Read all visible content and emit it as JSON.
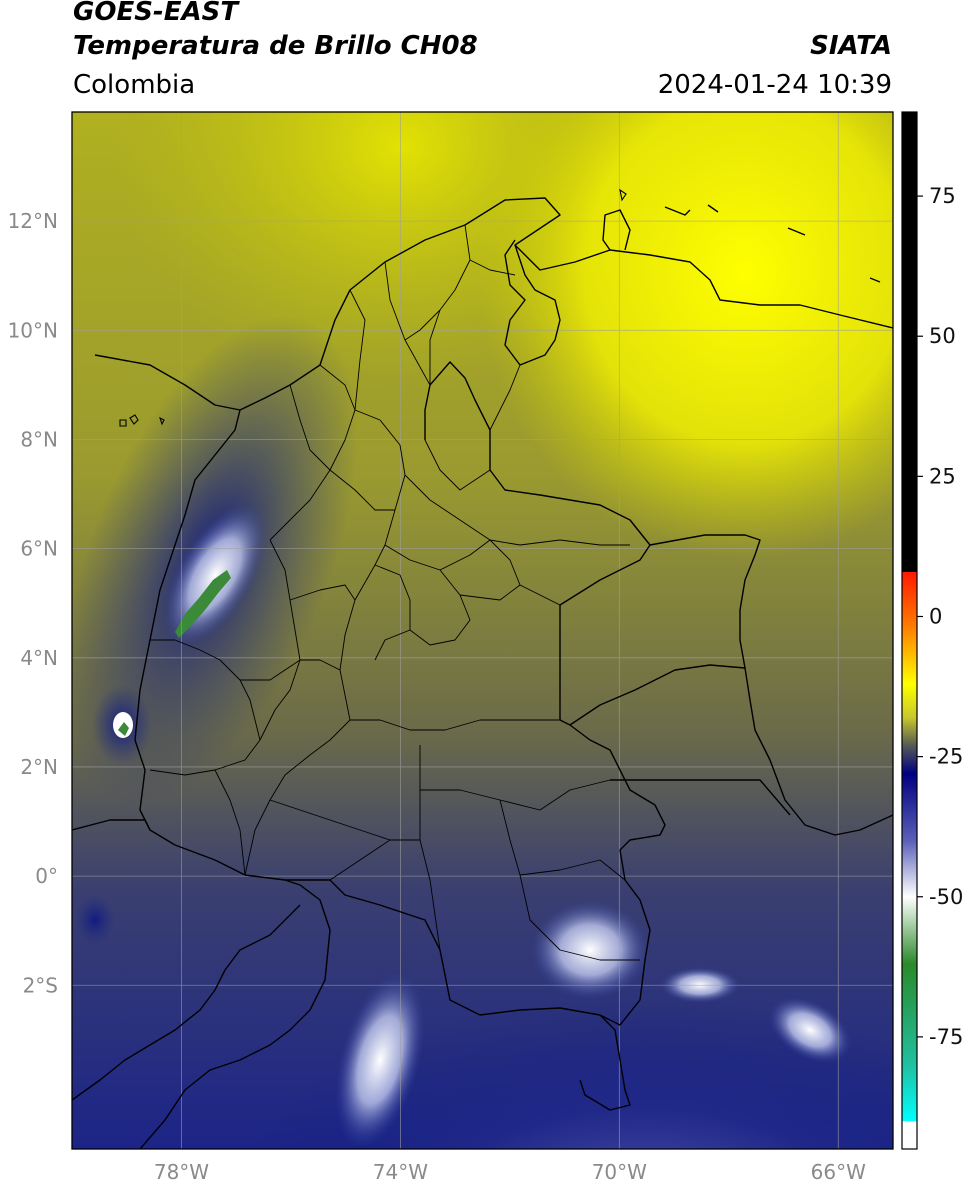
{
  "header": {
    "satellite": "GOES-EAST",
    "product": "Temperatura de Brillo CH08",
    "brand": "SIATA",
    "region": "Colombia",
    "timestamp": "2024-01-24 10:39"
  },
  "map": {
    "lon_range": [
      -80,
      -65
    ],
    "lat_range": [
      -5,
      14
    ],
    "lon_ticks": [
      {
        "value": -78,
        "label": "78°W"
      },
      {
        "value": -74,
        "label": "74°W"
      },
      {
        "value": -70,
        "label": "70°W"
      },
      {
        "value": -66,
        "label": "66°W"
      }
    ],
    "lat_ticks": [
      {
        "value": 12,
        "label": "12°N"
      },
      {
        "value": 10,
        "label": "10°N"
      },
      {
        "value": 8,
        "label": "8°N"
      },
      {
        "value": 6,
        "label": "6°N"
      },
      {
        "value": 4,
        "label": "4°N"
      },
      {
        "value": 2,
        "label": "2°N"
      },
      {
        "value": 0,
        "label": "0°"
      },
      {
        "value": -2,
        "label": "2°S"
      }
    ],
    "grid": true
  },
  "colorbar": {
    "range": [
      -95,
      90
    ],
    "ticks": [
      {
        "value": 75,
        "label": "75"
      },
      {
        "value": 50,
        "label": "50"
      },
      {
        "value": 25,
        "label": "25"
      },
      {
        "value": 0,
        "label": "0"
      },
      {
        "value": -25,
        "label": "-25"
      },
      {
        "value": -50,
        "label": "-50"
      },
      {
        "value": -75,
        "label": "-75"
      }
    ],
    "stops": [
      {
        "value": 90,
        "color": "#000000"
      },
      {
        "value": 8,
        "color": "#000000"
      },
      {
        "value": 7.9,
        "color": "#ff1a00"
      },
      {
        "value": -2,
        "color": "#ff7f00"
      },
      {
        "value": -12,
        "color": "#ffff00"
      },
      {
        "value": -18,
        "color": "#c8c82a"
      },
      {
        "value": -23,
        "color": "#555a55"
      },
      {
        "value": -28,
        "color": "#000080"
      },
      {
        "value": -40,
        "color": "#5a60b8"
      },
      {
        "value": -50,
        "color": "#ffffff"
      },
      {
        "value": -62,
        "color": "#2a8a2a"
      },
      {
        "value": -80,
        "color": "#20c0a0"
      },
      {
        "value": -90,
        "color": "#00ffff"
      },
      {
        "value": -90.1,
        "color": "#ffffff"
      },
      {
        "value": -95,
        "color": "#ffffff"
      }
    ]
  }
}
